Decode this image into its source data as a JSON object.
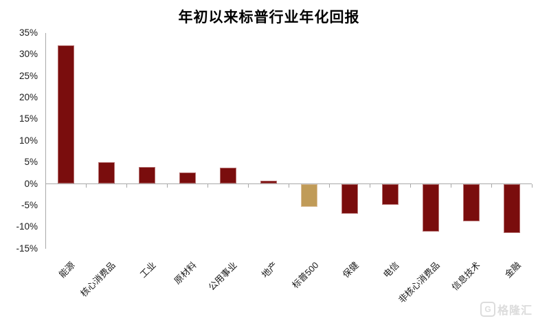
{
  "title": "年初以来标普行业年化回报",
  "chart_data": {
    "type": "bar",
    "title": "年初以来标普行业年化回报",
    "categories": [
      "能源",
      "核心消费品",
      "工业",
      "原材料",
      "公用事业",
      "地产",
      "标普500",
      "保健",
      "电信",
      "非核心消费品",
      "信息技术",
      "金融"
    ],
    "values": [
      32.2,
      5.0,
      3.9,
      2.7,
      3.8,
      0.7,
      -5.2,
      -6.8,
      -4.8,
      -10.9,
      -8.6,
      -11.2
    ],
    "unit": "%",
    "highlight_index": 6,
    "highlight_category": "标普500",
    "colors": {
      "bar": "#7a0d0d",
      "highlight_bar": "#c09b58",
      "axis": "#a8a8a8",
      "text": "#1a1a1a"
    },
    "ylim": [
      -15,
      35
    ],
    "ytick_step": 5,
    "ytick_values": [
      35,
      30,
      25,
      20,
      15,
      10,
      5,
      0,
      -5,
      -10,
      -15
    ],
    "ytick_labels": [
      "35%",
      "30%",
      "25%",
      "20%",
      "15%",
      "10%",
      "5%",
      "0%",
      "-5%",
      "-10%",
      "-15%"
    ],
    "grid": false,
    "legend": null,
    "xlabel": "",
    "ylabel": ""
  },
  "watermark": {
    "logo_letter": "G",
    "text": "格隆汇",
    "color": "#dcdcdc"
  }
}
